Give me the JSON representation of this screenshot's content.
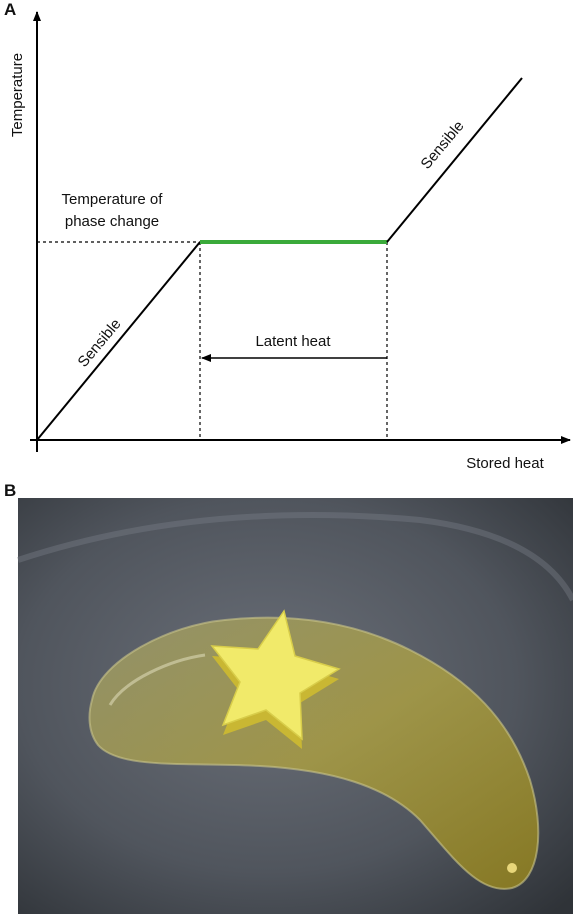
{
  "panel_a": {
    "label": "A",
    "y_axis_label": "Temperature",
    "x_axis_label": "Stored heat",
    "phase_change_label": [
      "Temperature of",
      "phase change"
    ],
    "sensible_low": "Sensible",
    "sensible_high": "Sensible",
    "latent_heat": "Latent heat"
  },
  "panel_b": {
    "label": "B"
  }
}
